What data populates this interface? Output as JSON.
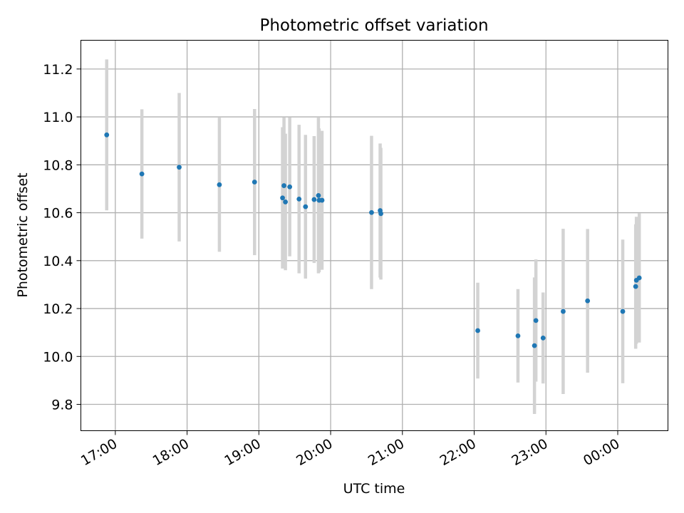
{
  "chart_data": {
    "type": "scatter",
    "title": "Photometric offset variation",
    "xlabel": "UTC time",
    "ylabel": "Photometric offset",
    "x_unit": "hours (UTC, relative to 00:00 of first day)",
    "xlim": [
      16.52,
      24.7
    ],
    "ylim": [
      9.69,
      11.32
    ],
    "x_ticks": [
      17,
      18,
      19,
      20,
      21,
      22,
      23,
      24
    ],
    "x_tick_labels": [
      "17:00",
      "18:00",
      "19:00",
      "20:00",
      "21:00",
      "22:00",
      "23:00",
      "00:00"
    ],
    "y_ticks": [
      9.8,
      10.0,
      10.2,
      10.4,
      10.6,
      10.8,
      11.0,
      11.2
    ],
    "y_tick_labels": [
      "9.8",
      "10.0",
      "10.2",
      "10.4",
      "10.6",
      "10.8",
      "11.0",
      "11.2"
    ],
    "grid": true,
    "colors": {
      "point": "#1f77b4",
      "errorbar": "#d3d3d3",
      "grid": "#b0b0b0"
    },
    "points": [
      {
        "x": 16.88,
        "y": 10.925,
        "err": 0.315
      },
      {
        "x": 17.37,
        "y": 10.762,
        "err": 0.27
      },
      {
        "x": 17.89,
        "y": 10.79,
        "err": 0.31
      },
      {
        "x": 18.45,
        "y": 10.717,
        "err": 0.28
      },
      {
        "x": 18.94,
        "y": 10.728,
        "err": 0.305
      },
      {
        "x": 19.33,
        "y": 10.662,
        "err": 0.295
      },
      {
        "x": 19.35,
        "y": 10.713,
        "err": 0.285
      },
      {
        "x": 19.37,
        "y": 10.645,
        "err": 0.285
      },
      {
        "x": 19.43,
        "y": 10.708,
        "err": 0.29
      },
      {
        "x": 19.56,
        "y": 10.657,
        "err": 0.31
      },
      {
        "x": 19.65,
        "y": 10.625,
        "err": 0.3
      },
      {
        "x": 19.77,
        "y": 10.655,
        "err": 0.265
      },
      {
        "x": 19.83,
        "y": 10.672,
        "err": 0.325
      },
      {
        "x": 19.84,
        "y": 10.652,
        "err": 0.3
      },
      {
        "x": 19.88,
        "y": 10.652,
        "err": 0.29
      },
      {
        "x": 20.57,
        "y": 10.601,
        "err": 0.32
      },
      {
        "x": 20.69,
        "y": 10.609,
        "err": 0.28
      },
      {
        "x": 20.7,
        "y": 10.596,
        "err": 0.275
      },
      {
        "x": 22.05,
        "y": 10.108,
        "err": 0.2
      },
      {
        "x": 22.61,
        "y": 10.086,
        "err": 0.195
      },
      {
        "x": 22.84,
        "y": 10.045,
        "err": 0.285
      },
      {
        "x": 22.86,
        "y": 10.15,
        "err": 0.255
      },
      {
        "x": 22.96,
        "y": 10.077,
        "err": 0.19
      },
      {
        "x": 23.24,
        "y": 10.188,
        "err": 0.345
      },
      {
        "x": 23.58,
        "y": 10.232,
        "err": 0.3
      },
      {
        "x": 24.07,
        "y": 10.188,
        "err": 0.3
      },
      {
        "x": 24.25,
        "y": 10.292,
        "err": 0.26
      },
      {
        "x": 24.26,
        "y": 10.318,
        "err": 0.265
      },
      {
        "x": 24.3,
        "y": 10.328,
        "err": 0.27
      }
    ]
  }
}
